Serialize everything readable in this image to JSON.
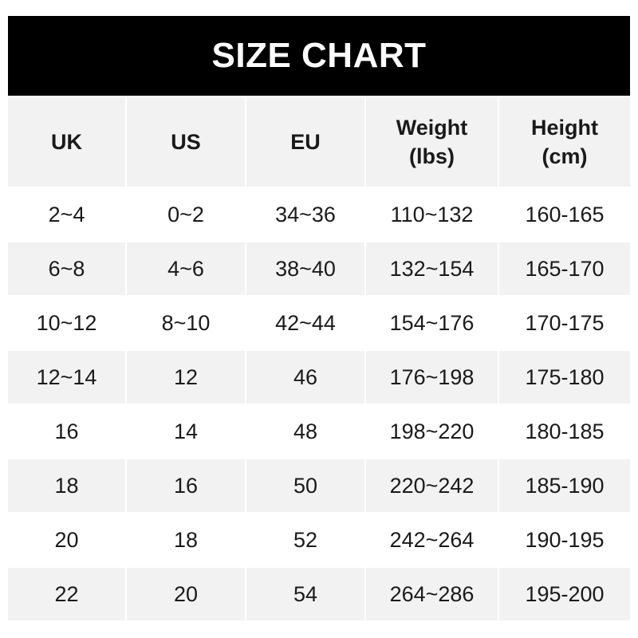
{
  "title": "SIZE CHART",
  "headers": [
    {
      "line1": "UK",
      "line2": ""
    },
    {
      "line1": "US",
      "line2": ""
    },
    {
      "line1": "EU",
      "line2": ""
    },
    {
      "line1": "Weight",
      "line2": "(lbs)"
    },
    {
      "line1": "Height",
      "line2": "(cm)"
    }
  ],
  "rows": [
    [
      "2~4",
      "0~2",
      "34~36",
      "110~132",
      "160-165"
    ],
    [
      "6~8",
      "4~6",
      "38~40",
      "132~154",
      "165-170"
    ],
    [
      "10~12",
      "8~10",
      "42~44",
      "154~176",
      "170-175"
    ],
    [
      "12~14",
      "12",
      "46",
      "176~198",
      "175-180"
    ],
    [
      "16",
      "14",
      "48",
      "198~220",
      "180-185"
    ],
    [
      "18",
      "16",
      "50",
      "220~242",
      "185-190"
    ],
    [
      "20",
      "18",
      "52",
      "242~264",
      "190-195"
    ],
    [
      "22",
      "20",
      "54",
      "264~286",
      "195-200"
    ]
  ],
  "colors": {
    "banner": "#000000",
    "stripe": "#f2f2f2",
    "text": "#1a1a1a"
  }
}
